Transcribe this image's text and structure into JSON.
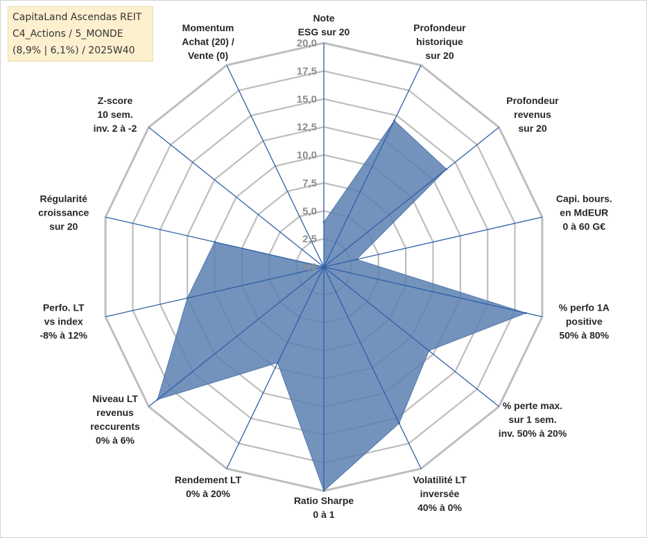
{
  "info": {
    "line1": "CapitaLand Ascendas REIT",
    "line2": "C4_Actions / 5_MONDE",
    "line3": "(8,9% | 6,1%) / 2025W40"
  },
  "chart_data": {
    "type": "radar",
    "title": "CapitaLand Ascendas REIT",
    "scale": {
      "min": 0,
      "max": 20,
      "step": 2.5
    },
    "tick_labels": [
      "0,0",
      "2,5",
      "5,0",
      "7,5",
      "10,0",
      "12,5",
      "15,0",
      "17,5",
      "20,0"
    ],
    "axes": [
      {
        "lines": [
          "Note",
          "ESG sur 20"
        ]
      },
      {
        "lines": [
          "Profondeur",
          "historique",
          "sur 20"
        ]
      },
      {
        "lines": [
          "Profondeur",
          "revenus",
          "sur 20"
        ]
      },
      {
        "lines": [
          "Capi. bours.",
          "en MdEUR",
          "0 à 60 G€"
        ]
      },
      {
        "lines": [
          "% perfo 1A",
          "positive",
          "50% à 80%"
        ]
      },
      {
        "lines": [
          "% perte max.",
          "sur 1 sem.",
          "inv. 50% à 20%"
        ]
      },
      {
        "lines": [
          "Volatilité LT",
          "inversée",
          "40% à 0%"
        ]
      },
      {
        "lines": [
          "Ratio Sharpe",
          "0 à 1"
        ]
      },
      {
        "lines": [
          "Rendement LT",
          "0% à 20%"
        ]
      },
      {
        "lines": [
          "Niveau LT",
          "revenus",
          "reccurents",
          "0% à 6%"
        ]
      },
      {
        "lines": [
          "Perfo. LT",
          "vs index",
          "-8% à 12%"
        ]
      },
      {
        "lines": [
          "Régularité",
          "croissance",
          "sur 20"
        ]
      },
      {
        "lines": [
          "Z-score",
          "10 sem.",
          "inv. 2 à -2"
        ]
      },
      {
        "lines": [
          "Momentum",
          "Achat (20) /",
          "Vente (0)"
        ]
      }
    ],
    "series": [
      {
        "name": "CapitaLand Ascendas REIT",
        "color": "#5b80b2",
        "values": [
          4.0,
          14.5,
          14.0,
          3.0,
          18.5,
          12.0,
          15.5,
          20.0,
          9.5,
          19.0,
          12.5,
          10.0,
          0.0,
          0.0
        ]
      }
    ],
    "colors": {
      "grid": "#bdbdbd",
      "spoke": "#2e5ea8",
      "fill": "#5b80b2"
    }
  }
}
